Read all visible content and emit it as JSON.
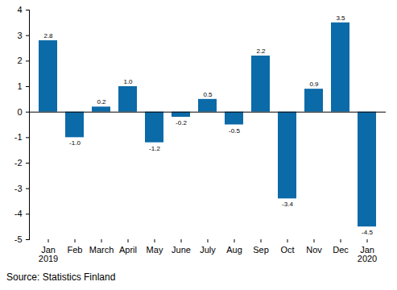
{
  "chart_data": {
    "type": "bar",
    "categories": [
      "Jan\n2019",
      "Feb",
      "March",
      "April",
      "May",
      "June",
      "July",
      "Aug",
      "Sep",
      "Oct",
      "Nov",
      "Dec",
      "Jan\n2020"
    ],
    "values": [
      2.8,
      -1.0,
      0.2,
      1.0,
      -1.2,
      -0.2,
      0.5,
      -0.5,
      2.2,
      -3.4,
      0.9,
      3.5,
      -4.5
    ],
    "value_labels": [
      "2.8",
      "-1.0",
      "0.2",
      "1.0",
      "-1.2",
      "-0.2",
      "0.5",
      "-0.5",
      "2.2",
      "-3.4",
      "0.9",
      "3.5",
      "-4.5"
    ],
    "color": "#0b6aa8",
    "ylim": [
      -5,
      4
    ],
    "yticks": [
      -5,
      -4,
      -3,
      -2,
      -1,
      0,
      1,
      2,
      3,
      4
    ],
    "grid": false,
    "data_labels": true,
    "caption": "Source: Statistics Finland"
  }
}
